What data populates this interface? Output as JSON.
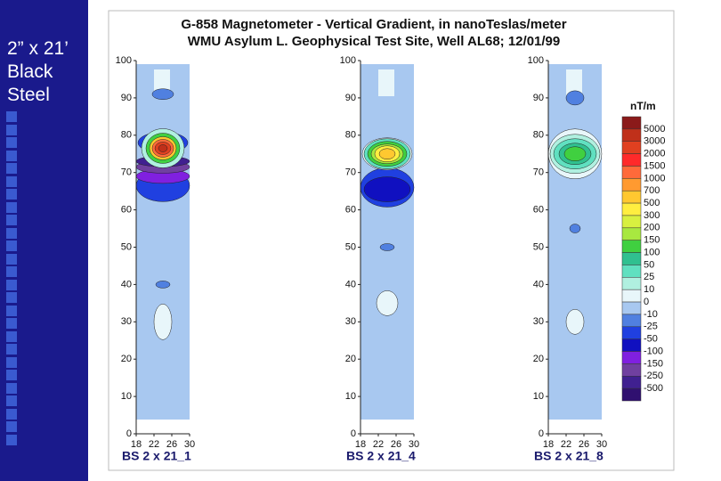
{
  "slide": {
    "title_lines": [
      "2” x 21’",
      "Black",
      "Steel"
    ]
  },
  "figure": {
    "title_lines": [
      "G-858 Magnetometer - Vertical Gradient, in nanoTeslas/meter",
      "WMU Asylum L. Geophysical Test Site, Well AL68;  12/01/99"
    ],
    "yticks": [
      100,
      90,
      80,
      70,
      60,
      50,
      40,
      30,
      20,
      10,
      0
    ],
    "xticks": [
      18,
      22,
      26,
      30
    ],
    "panels": [
      {
        "label": "BS 2 x 21_1"
      },
      {
        "label": "BS 2 x 21_4"
      },
      {
        "label": "BS 2 x 21_8"
      }
    ],
    "legend": {
      "unit": "nT/m",
      "labels": [
        5000,
        3000,
        2000,
        1500,
        1000,
        700,
        500,
        300,
        200,
        150,
        100,
        50,
        25,
        10,
        0,
        -10,
        -25,
        -50,
        -100,
        -150,
        -250,
        -500
      ],
      "colors": [
        "#8b1a1a",
        "#c0301a",
        "#e04020",
        "#ff2a2a",
        "#ff6a3a",
        "#ff9a30",
        "#ffc830",
        "#ffee40",
        "#d8f040",
        "#a8e840",
        "#40d040",
        "#30c090",
        "#60e0c0",
        "#b0f0e0",
        "#e8f6fa",
        "#a8c8f0",
        "#5080e0",
        "#2040e0",
        "#1010c0",
        "#8020e0",
        "#7040a0",
        "#402090",
        "#301070"
      ]
    }
  }
}
